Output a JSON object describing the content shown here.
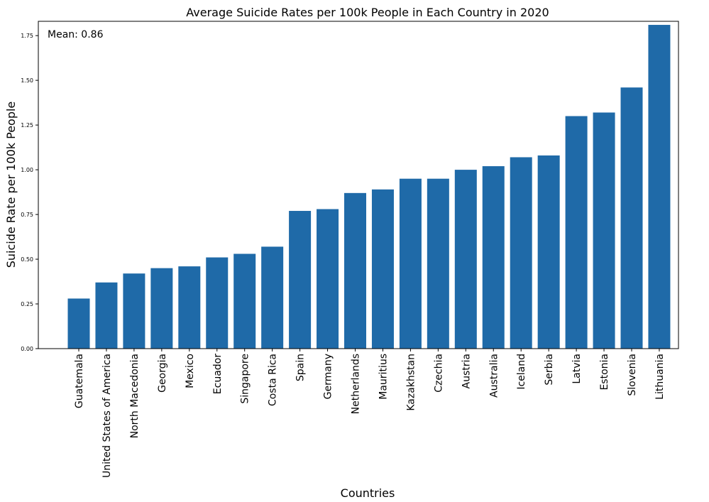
{
  "chart_data": {
    "type": "bar",
    "title": "Average Suicide Rates per 100k People in Each Country in 2020",
    "xlabel": "Countries",
    "ylabel": "Suicide Rate per 100k People",
    "annotation": "Mean: 0.86",
    "ylim": [
      0,
      1.83
    ],
    "yticks": [
      "0.00",
      "0.25",
      "0.50",
      "0.75",
      "1.00",
      "1.25",
      "1.50",
      "1.75"
    ],
    "grid": false,
    "bar_color": "#1f6aa8",
    "categories": [
      "Guatemala",
      "United States of America",
      "North Macedonia",
      "Georgia",
      "Mexico",
      "Ecuador",
      "Singapore",
      "Costa Rica",
      "Spain",
      "Germany",
      "Netherlands",
      "Mauritius",
      "Kazakhstan",
      "Czechia",
      "Austria",
      "Australia",
      "Iceland",
      "Serbia",
      "Latvia",
      "Estonia",
      "Slovenia",
      "Lithuania"
    ],
    "values": [
      0.28,
      0.37,
      0.42,
      0.45,
      0.46,
      0.51,
      0.53,
      0.57,
      0.77,
      0.78,
      0.87,
      0.89,
      0.95,
      0.95,
      1.0,
      1.02,
      1.07,
      1.08,
      1.3,
      1.32,
      1.46,
      1.81
    ]
  }
}
